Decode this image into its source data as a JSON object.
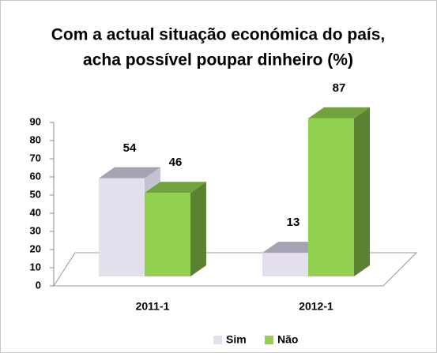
{
  "chart_data": {
    "type": "bar3d",
    "title": [
      "Com a actual situação económica do país,",
      "acha possível poupar dinheiro (%)"
    ],
    "categories": [
      "2011-1",
      "2012-1"
    ],
    "series": [
      {
        "name": "Sim",
        "color": "#e4dfec",
        "values": [
          54,
          13
        ]
      },
      {
        "name": "Não",
        "color": "#92d050",
        "values": [
          46,
          87
        ]
      }
    ],
    "ylim": [
      0,
      90
    ],
    "yticks": [
      0,
      10,
      20,
      30,
      40,
      50,
      60,
      70,
      80,
      90
    ],
    "legend": "bottom"
  }
}
